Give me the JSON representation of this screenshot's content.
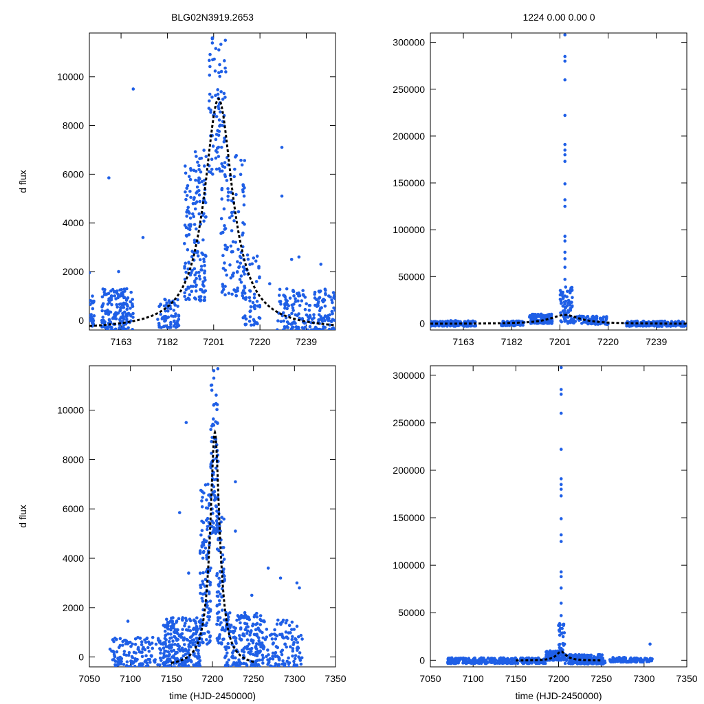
{
  "figure": {
    "title_left": "BLG02N3919.2653",
    "title_right": "1224  0.00  0.00  0"
  },
  "colors": {
    "points": "#1f5fe6",
    "model": "#000000"
  },
  "chart_data": [
    {
      "type": "scatter",
      "panel": "top-left",
      "title": "BLG02N3919.2653",
      "xlabel": "",
      "ylabel": "d flux",
      "xlim": [
        7150,
        7251
      ],
      "ylim": [
        -400,
        11800
      ],
      "xticks": [
        7163,
        7182,
        7201,
        7220,
        7239
      ],
      "yticks": [
        0,
        2000,
        4000,
        6000,
        8000,
        10000
      ],
      "model": {
        "t0": 7203,
        "peak": 9100,
        "base": -400,
        "width": 7
      },
      "clusters": [
        {
          "x0": 7150,
          "x1": 7152,
          "ymin": -300,
          "ymax": 1000,
          "n": 25
        },
        {
          "x0": 7155,
          "x1": 7168,
          "ymin": -400,
          "ymax": 1300,
          "n": 170
        },
        {
          "x0": 7178,
          "x1": 7187,
          "ymin": -300,
          "ymax": 900,
          "n": 70
        },
        {
          "x0": 7189,
          "x1": 7198,
          "ymin": 800,
          "ymax": 7000,
          "n": 170
        },
        {
          "x0": 7199,
          "x1": 7206,
          "ymin": 6000,
          "ymax": 11800,
          "n": 80
        },
        {
          "x0": 7204,
          "x1": 7214,
          "ymin": 1000,
          "ymax": 7000,
          "n": 110
        },
        {
          "x0": 7213,
          "x1": 7220,
          "ymin": -200,
          "ymax": 2700,
          "n": 60
        },
        {
          "x0": 7227,
          "x1": 7251,
          "ymin": -400,
          "ymax": 1300,
          "n": 190
        }
      ],
      "outliers": [
        [
          7158,
          5850
        ],
        [
          7168,
          9500
        ],
        [
          7229,
          7100
        ],
        [
          7229,
          5100
        ],
        [
          7233,
          2500
        ],
        [
          7224,
          1500
        ],
        [
          7172,
          3400
        ],
        [
          7150,
          1950
        ],
        [
          7162,
          2000
        ],
        [
          7245,
          2300
        ],
        [
          7236,
          2600
        ]
      ]
    },
    {
      "type": "scatter",
      "panel": "top-right",
      "title": "1224  0.00  0.00  0",
      "xlabel": "",
      "ylabel": "",
      "xlim": [
        7150,
        7251
      ],
      "ylim": [
        -7000,
        310000
      ],
      "xticks": [
        7163,
        7182,
        7201,
        7220,
        7239
      ],
      "yticks": [
        0,
        50000,
        100000,
        150000,
        200000,
        250000,
        300000
      ],
      "model": {
        "t0": 7203,
        "peak": 9100,
        "base": -400,
        "width": 7
      },
      "clusters": [
        {
          "x0": 7150,
          "x1": 7168,
          "ymin": -3000,
          "ymax": 3000,
          "n": 160
        },
        {
          "x0": 7178,
          "x1": 7187,
          "ymin": -2500,
          "ymax": 2500,
          "n": 60
        },
        {
          "x0": 7189,
          "x1": 7198,
          "ymin": 0,
          "ymax": 10000,
          "n": 140
        },
        {
          "x0": 7201,
          "x1": 7206,
          "ymin": 0,
          "ymax": 40000,
          "n": 80
        },
        {
          "x0": 7206,
          "x1": 7220,
          "ymin": -1000,
          "ymax": 8000,
          "n": 90
        },
        {
          "x0": 7227,
          "x1": 7251,
          "ymin": -3000,
          "ymax": 2500,
          "n": 170
        }
      ],
      "outliers": [
        [
          7203,
          308000
        ],
        [
          7203,
          285000
        ],
        [
          7203,
          280000
        ],
        [
          7203,
          260000
        ],
        [
          7203,
          222000
        ],
        [
          7203,
          191000
        ],
        [
          7203,
          185000
        ],
        [
          7203,
          180000
        ],
        [
          7203,
          173000
        ],
        [
          7203,
          149000
        ],
        [
          7203,
          132000
        ],
        [
          7203,
          125000
        ],
        [
          7203,
          93000
        ],
        [
          7203,
          88000
        ],
        [
          7203,
          76000
        ],
        [
          7203,
          69000
        ],
        [
          7203,
          60000
        ],
        [
          7203,
          47000
        ]
      ]
    },
    {
      "type": "scatter",
      "panel": "bottom-left",
      "xlabel": "time (HJD-2450000)",
      "ylabel": "d flux",
      "xlim": [
        7050,
        7350
      ],
      "ylim": [
        -400,
        11800
      ],
      "xticks": [
        7050,
        7100,
        7150,
        7200,
        7250,
        7300,
        7350
      ],
      "yticks": [
        0,
        2000,
        4000,
        6000,
        8000,
        10000
      ],
      "model": {
        "t0": 7203,
        "peak": 9100,
        "base": -400,
        "width": 7,
        "xrange": [
          7150,
          7251
        ]
      },
      "clusters": [
        {
          "x0": 7075,
          "x1": 7140,
          "ymin": -400,
          "ymax": 800,
          "n": 140
        },
        {
          "x0": 7140,
          "x1": 7185,
          "ymin": -400,
          "ymax": 1600,
          "n": 260
        },
        {
          "x0": 7185,
          "x1": 7198,
          "ymin": 500,
          "ymax": 7000,
          "n": 120
        },
        {
          "x0": 7198,
          "x1": 7207,
          "ymin": 5000,
          "ymax": 11800,
          "n": 80
        },
        {
          "x0": 7205,
          "x1": 7215,
          "ymin": 500,
          "ymax": 6000,
          "n": 80
        },
        {
          "x0": 7215,
          "x1": 7260,
          "ymin": -400,
          "ymax": 1800,
          "n": 200
        },
        {
          "x0": 7260,
          "x1": 7310,
          "ymin": -400,
          "ymax": 1500,
          "n": 130
        }
      ],
      "outliers": [
        [
          7160,
          5850
        ],
        [
          7168,
          9500
        ],
        [
          7228,
          7100
        ],
        [
          7228,
          5100
        ],
        [
          7268,
          3600
        ],
        [
          7283,
          3200
        ],
        [
          7303,
          3000
        ],
        [
          7097,
          1450
        ],
        [
          7171,
          3400
        ],
        [
          7248,
          2500
        ],
        [
          7306,
          2800
        ]
      ]
    },
    {
      "type": "scatter",
      "panel": "bottom-right",
      "xlabel": "time (HJD-2450000)",
      "ylabel": "",
      "xlim": [
        7050,
        7350
      ],
      "ylim": [
        -7000,
        310000
      ],
      "xticks": [
        7050,
        7100,
        7150,
        7200,
        7250,
        7300,
        7350
      ],
      "yticks": [
        0,
        50000,
        100000,
        150000,
        200000,
        250000,
        300000
      ],
      "model": {
        "t0": 7203,
        "peak": 9100,
        "base": -400,
        "width": 7,
        "xrange": [
          7150,
          7251
        ]
      },
      "clusters": [
        {
          "x0": 7070,
          "x1": 7185,
          "ymin": -3500,
          "ymax": 2500,
          "n": 300
        },
        {
          "x0": 7185,
          "x1": 7200,
          "ymin": 0,
          "ymax": 10000,
          "n": 100
        },
        {
          "x0": 7200,
          "x1": 7207,
          "ymin": 0,
          "ymax": 40000,
          "n": 60
        },
        {
          "x0": 7207,
          "x1": 7255,
          "ymin": -4000,
          "ymax": 6000,
          "n": 160
        },
        {
          "x0": 7260,
          "x1": 7310,
          "ymin": -2000,
          "ymax": 3000,
          "n": 110
        }
      ],
      "outliers": [
        [
          7203,
          308000
        ],
        [
          7203,
          285000
        ],
        [
          7203,
          280000
        ],
        [
          7203,
          260000
        ],
        [
          7203,
          222000
        ],
        [
          7203,
          191000
        ],
        [
          7203,
          185000
        ],
        [
          7203,
          180000
        ],
        [
          7203,
          173000
        ],
        [
          7203,
          149000
        ],
        [
          7203,
          132000
        ],
        [
          7203,
          125000
        ],
        [
          7203,
          93000
        ],
        [
          7203,
          88000
        ],
        [
          7203,
          76000
        ],
        [
          7203,
          60000
        ],
        [
          7203,
          47000
        ],
        [
          7307,
          17000
        ]
      ]
    }
  ]
}
